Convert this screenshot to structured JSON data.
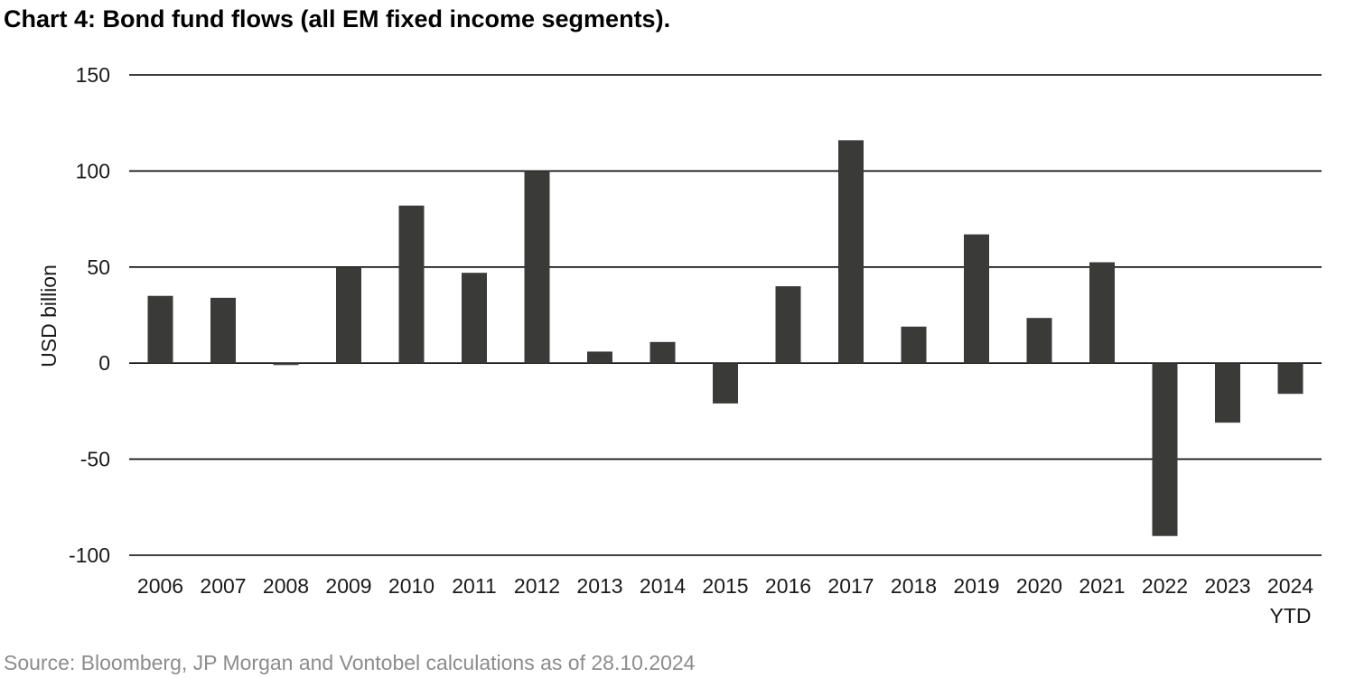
{
  "page": {
    "title": "Chart 4: Bond fund flows (all EM fixed income segments).",
    "source": "Source: Bloomberg, JP Morgan and Vontobel calculations as of 28.10.2024"
  },
  "chart_data": {
    "type": "bar",
    "title": "Chart 4: Bond fund flows (all EM fixed income segments).",
    "xlabel": "",
    "ylabel": "USD billion",
    "ylim": [
      -100,
      150
    ],
    "yticks": [
      150,
      100,
      50,
      0,
      -50,
      -100
    ],
    "grid": true,
    "legend": "none",
    "bar_color": "#3a3b39",
    "categories": [
      "2006",
      "2007",
      "2008",
      "2009",
      "2010",
      "2011",
      "2012",
      "2013",
      "2014",
      "2015",
      "2016",
      "2017",
      "2018",
      "2019",
      "2020",
      "2021",
      "2022",
      "2023",
      "2024 YTD"
    ],
    "category_labels": [
      [
        "2006"
      ],
      [
        "2007"
      ],
      [
        "2008"
      ],
      [
        "2009"
      ],
      [
        "2010"
      ],
      [
        "2011"
      ],
      [
        "2012"
      ],
      [
        "2013"
      ],
      [
        "2014"
      ],
      [
        "2015"
      ],
      [
        "2016"
      ],
      [
        "2017"
      ],
      [
        "2018"
      ],
      [
        "2019"
      ],
      [
        "2020"
      ],
      [
        "2021"
      ],
      [
        "2022"
      ],
      [
        "2023"
      ],
      [
        "2024",
        "YTD"
      ]
    ],
    "values": [
      35,
      34,
      -1,
      50,
      82,
      47,
      100,
      6,
      11,
      -21,
      40,
      116,
      19,
      67,
      23.5,
      52.5,
      -90,
      -31,
      -16
    ]
  }
}
